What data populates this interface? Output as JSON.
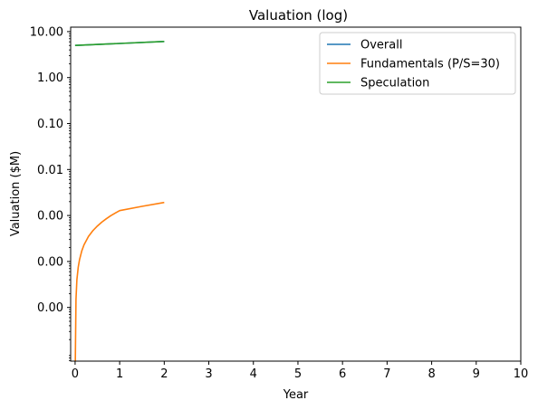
{
  "chart_data": {
    "type": "line",
    "title": "Valuation (log)",
    "xlabel": "Year",
    "ylabel": "Valuation ($M)",
    "y_scale": "log",
    "xlim": [
      -0.1,
      10
    ],
    "ylim": [
      6.8e-07,
      12.5
    ],
    "x_ticks": [
      0,
      1,
      2,
      3,
      4,
      5,
      6,
      7,
      8,
      9,
      10
    ],
    "x_tick_labels": [
      "0",
      "1",
      "2",
      "3",
      "4",
      "5",
      "6",
      "7",
      "8",
      "9",
      "10"
    ],
    "y_ticks": [
      1e-05,
      0.0001,
      0.001,
      0.01,
      0.1,
      1,
      10
    ],
    "y_tick_labels": [
      "0.00",
      "0.00",
      "0.00",
      "0.01",
      "0.10",
      "1.00",
      "10.00"
    ],
    "grid": false,
    "legend_position": "top-right",
    "series": [
      {
        "name": "Overall",
        "color": "#1f77b4",
        "x": [
          0,
          2
        ],
        "y": [
          5.0,
          6.1
        ]
      },
      {
        "name": "Fundamentals (P/S=30)",
        "color": "#ff7f0e",
        "x": [
          0.005,
          0.01,
          0.02,
          0.04,
          0.07,
          0.1,
          0.15,
          0.2,
          0.3,
          0.4,
          0.5,
          0.6,
          0.7,
          0.8,
          0.9,
          1.0,
          1.5,
          2.0
        ],
        "y": [
          7e-07,
          2e-06,
          1.5e-05,
          4e-05,
          7.5e-05,
          0.00011,
          0.00017,
          0.00023,
          0.00035,
          0.00047,
          0.00059,
          0.00072,
          0.00085,
          0.00099,
          0.00113,
          0.00128,
          0.00158,
          0.00192
        ]
      },
      {
        "name": "Speculation",
        "color": "#2ca02c",
        "x": [
          0,
          2
        ],
        "y": [
          5.0,
          6.1
        ]
      }
    ]
  }
}
